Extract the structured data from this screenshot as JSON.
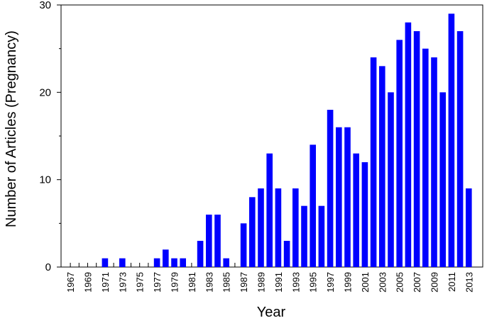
{
  "chart_data": {
    "type": "bar",
    "xlabel": "Year",
    "ylabel": "Number of Articles (Pregnancy)",
    "ylim": [
      0,
      30
    ],
    "yticks": [
      0,
      10,
      20,
      30
    ],
    "grid": false,
    "bar_color": "#0000ff",
    "tick_label_years": [
      "1967",
      "1969",
      "1971",
      "1973",
      "1975",
      "1977",
      "1979",
      "1981",
      "1983",
      "1985",
      "1987",
      "1989",
      "1991",
      "1993",
      "1995",
      "1997",
      "1999",
      "2001",
      "2003",
      "2005",
      "2007",
      "2009",
      "2011",
      "2013"
    ],
    "categories": [
      "1967",
      "1968",
      "1969",
      "1970",
      "1971",
      "1972",
      "1973",
      "1974",
      "1975",
      "1976",
      "1977",
      "1978",
      "1979",
      "1980",
      "1981",
      "1982",
      "1983",
      "1984",
      "1985",
      "1986",
      "1987",
      "1988",
      "1989",
      "1990",
      "1991",
      "1992",
      "1993",
      "1994",
      "1995",
      "1996",
      "1997",
      "1998",
      "1999",
      "2000",
      "2001",
      "2002",
      "2003",
      "2004",
      "2005",
      "2006",
      "2007",
      "2008",
      "2009",
      "2010",
      "2011",
      "2012",
      "2013"
    ],
    "values": [
      0,
      0,
      0,
      0,
      1,
      0,
      1,
      0,
      0,
      0,
      1,
      2,
      1,
      1,
      0,
      3,
      6,
      6,
      1,
      0,
      5,
      8,
      9,
      13,
      9,
      3,
      9,
      7,
      14,
      7,
      18,
      16,
      16,
      13,
      12,
      24,
      23,
      20,
      26,
      28,
      27,
      25,
      24,
      20,
      29,
      27,
      9
    ]
  }
}
